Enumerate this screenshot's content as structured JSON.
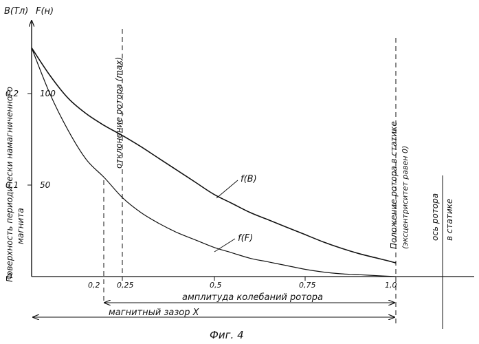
{
  "chart_data": {
    "type": "line",
    "title": "",
    "left_axis_label": "B(Тл)",
    "right_axis_label": "F(н)",
    "x_ticks": [
      "0,2",
      "0,25",
      "0,5",
      "0,75",
      "1,0"
    ],
    "y_left_ticks": [
      "0",
      "0,1",
      "0,2"
    ],
    "y_right_ticks": [
      "50",
      "100"
    ],
    "xlim": [
      0,
      1.0
    ],
    "ylim_B": [
      0,
      0.26
    ],
    "ylim_F": [
      0,
      130
    ],
    "series": [
      {
        "name": "f(B)",
        "axis": "B",
        "x": [
          0,
          0.05,
          0.1,
          0.15,
          0.2,
          0.25,
          0.3,
          0.35,
          0.4,
          0.45,
          0.5,
          0.55,
          0.6,
          0.65,
          0.7,
          0.75,
          0.8,
          0.85,
          0.9,
          0.95,
          1.0
        ],
        "y": [
          0.25,
          0.22,
          0.195,
          0.178,
          0.165,
          0.154,
          0.142,
          0.129,
          0.116,
          0.103,
          0.09,
          0.08,
          0.07,
          0.062,
          0.054,
          0.046,
          0.038,
          0.031,
          0.025,
          0.02,
          0.015
        ]
      },
      {
        "name": "f(F)",
        "axis": "F",
        "x": [
          0,
          0.05,
          0.1,
          0.15,
          0.2,
          0.25,
          0.3,
          0.35,
          0.4,
          0.45,
          0.5,
          0.55,
          0.6,
          0.65,
          0.7,
          0.75,
          0.8,
          0.85,
          0.9,
          0.95,
          1.0
        ],
        "y": [
          125,
          100,
          80,
          64,
          54,
          43,
          35,
          29,
          24,
          20,
          16,
          13,
          10,
          8,
          6,
          4,
          2.5,
          1.5,
          1,
          0.5,
          0
        ]
      }
    ]
  },
  "annotations": {
    "surface_label_1": "Поверхность периодически намагниченного",
    "surface_label_2": "магнита",
    "deflection_label": "отклонение ротора (max)",
    "rotor_position_1": "Положение ротора в статике",
    "rotor_position_2": "(эксцентриситет равен 0)",
    "axis_label_1": "ось ротора",
    "axis_label_2": "в статике",
    "amplitude_label": "амплитуда колебаний ротора",
    "gap_label": "магнитный зазор X",
    "figure_caption": "Фиг. 4"
  }
}
